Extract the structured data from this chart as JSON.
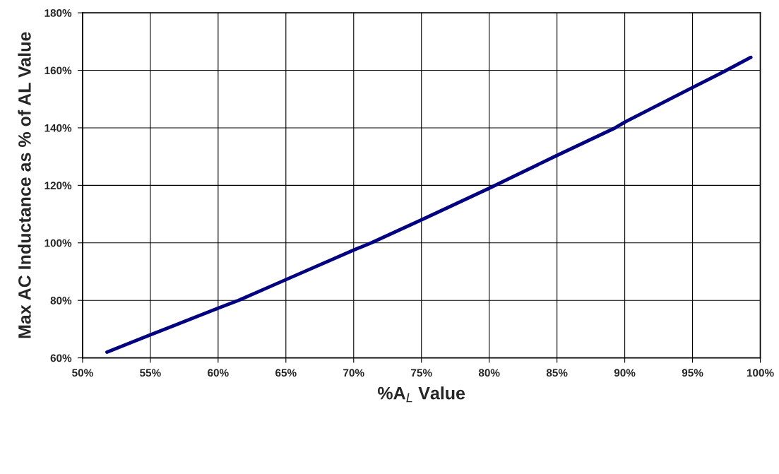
{
  "chart_data": {
    "type": "line",
    "xlabel": "%A$_{L}$ Value",
    "ylabel": "Max AC Inductance as % of AL Value",
    "x": [
      51.8,
      55,
      60,
      61.5,
      65,
      70,
      71.3,
      75,
      80,
      85,
      89.3,
      90,
      95,
      97.5,
      99.3
    ],
    "series": [
      {
        "color": "#000080",
        "values": [
          62,
          68,
          77.3,
          80,
          87.2,
          97.5,
          100,
          108,
          119,
          130.4,
          140,
          142,
          154,
          160,
          164.5
        ]
      }
    ],
    "xlim": [
      50,
      100
    ],
    "ylim": [
      60,
      180
    ],
    "xticks": [
      {
        "value": 50,
        "label": "50%"
      },
      {
        "value": 55,
        "label": "55%"
      },
      {
        "value": 60,
        "label": "60%"
      },
      {
        "value": 65,
        "label": "65%"
      },
      {
        "value": 70,
        "label": "70%"
      },
      {
        "value": 75,
        "label": "75%"
      },
      {
        "value": 80,
        "label": "80%"
      },
      {
        "value": 85,
        "label": "85%"
      },
      {
        "value": 90,
        "label": "90%"
      },
      {
        "value": 95,
        "label": "95%"
      },
      {
        "value": 100,
        "label": "100%"
      }
    ],
    "yticks": [
      {
        "value": 60,
        "label": "60%"
      },
      {
        "value": 80,
        "label": "80%"
      },
      {
        "value": 100,
        "label": "100%"
      },
      {
        "value": 120,
        "label": "120%"
      },
      {
        "value": 140,
        "label": "140%"
      },
      {
        "value": 160,
        "label": "160%"
      },
      {
        "value": 180,
        "label": "180%"
      }
    ],
    "grid": true,
    "line_style": "solid"
  }
}
